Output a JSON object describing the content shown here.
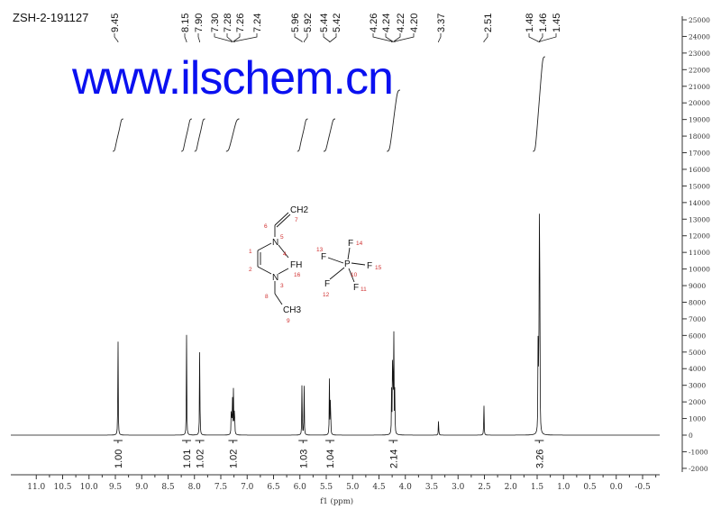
{
  "sample_name": "ZSH-2-191127",
  "watermark": "www.ilschem.cn",
  "structure": {
    "atoms": [
      "CH2",
      "N",
      "N",
      "FH",
      "F",
      "F",
      "F",
      "F",
      "F",
      "P",
      "CH3"
    ],
    "numbers": [
      "1",
      "2",
      "3",
      "4",
      "5",
      "6",
      "7",
      "8",
      "9",
      "10",
      "11",
      "12",
      "13",
      "14",
      "15",
      "16"
    ]
  },
  "chart_data": {
    "type": "line",
    "title": "",
    "xlabel": "f1 (ppm)",
    "ylabel": "",
    "xlim": [
      11.45,
      -0.8
    ],
    "ylim": [
      -2000,
      25000
    ],
    "x_ticks": [
      "11.0",
      "10.5",
      "10.0",
      "9.5",
      "9.0",
      "8.5",
      "8.0",
      "7.5",
      "7.0",
      "6.5",
      "6.0",
      "5.5",
      "5.0",
      "4.5",
      "4.0",
      "3.5",
      "3.0",
      "2.5",
      "2.0",
      "1.5",
      "1.0",
      "0.5",
      "0.0",
      "-0.5"
    ],
    "y_ticks": [
      "25000",
      "24000",
      "23000",
      "22000",
      "21000",
      "20000",
      "19000",
      "18000",
      "17000",
      "16000",
      "15000",
      "14000",
      "13000",
      "12000",
      "11000",
      "10000",
      "9000",
      "8000",
      "7000",
      "6000",
      "5000",
      "4000",
      "3000",
      "2000",
      "1000",
      "0",
      "-1000",
      "-2000"
    ],
    "peak_labels": [
      "9.45",
      "8.15",
      "7.90",
      "7.30",
      "7.28",
      "7.26",
      "7.24",
      "5.96",
      "5.92",
      "5.44",
      "5.42",
      "4.26",
      "4.24",
      "4.22",
      "4.20",
      "3.37",
      "2.51",
      "1.48",
      "1.46",
      "1.45"
    ],
    "peaks": [
      {
        "ppm": 9.45,
        "intensity": 6200
      },
      {
        "ppm": 8.15,
        "intensity": 6100
      },
      {
        "ppm": 7.9,
        "intensity": 5900
      },
      {
        "ppm": 7.3,
        "intensity": 2300
      },
      {
        "ppm": 7.28,
        "intensity": 2700
      },
      {
        "ppm": 7.26,
        "intensity": 2700
      },
      {
        "ppm": 7.24,
        "intensity": 2300
      },
      {
        "ppm": 5.96,
        "intensity": 3400
      },
      {
        "ppm": 5.92,
        "intensity": 3200
      },
      {
        "ppm": 5.44,
        "intensity": 3300
      },
      {
        "ppm": 5.42,
        "intensity": 3100
      },
      {
        "ppm": 4.26,
        "intensity": 2600
      },
      {
        "ppm": 4.24,
        "intensity": 7500
      },
      {
        "ppm": 4.22,
        "intensity": 7400
      },
      {
        "ppm": 4.2,
        "intensity": 2600
      },
      {
        "ppm": 3.37,
        "intensity": 1000
      },
      {
        "ppm": 2.51,
        "intensity": 2000
      },
      {
        "ppm": 1.48,
        "intensity": 8200
      },
      {
        "ppm": 1.46,
        "intensity": 16400
      },
      {
        "ppm": 1.45,
        "intensity": 8200
      }
    ],
    "integrals": [
      {
        "from": 9.55,
        "to": 9.35,
        "value": "1.00",
        "center": 9.45,
        "rise": 1.0
      },
      {
        "from": 8.25,
        "to": 8.05,
        "value": "1.01",
        "center": 8.15,
        "rise": 1.0
      },
      {
        "from": 8.0,
        "to": 7.8,
        "value": "1.02",
        "center": 7.9,
        "rise": 1.0
      },
      {
        "from": 7.4,
        "to": 7.15,
        "value": "1.02",
        "center": 7.27,
        "rise": 1.0
      },
      {
        "from": 6.05,
        "to": 5.85,
        "value": "1.03",
        "center": 5.94,
        "rise": 1.0
      },
      {
        "from": 5.55,
        "to": 5.33,
        "value": "1.04",
        "center": 5.43,
        "rise": 1.0
      },
      {
        "from": 4.35,
        "to": 4.1,
        "value": "2.14",
        "center": 4.23,
        "rise": 2.0
      },
      {
        "from": 1.58,
        "to": 1.35,
        "value": "3.26",
        "center": 1.46,
        "rise": 3.0
      }
    ]
  }
}
